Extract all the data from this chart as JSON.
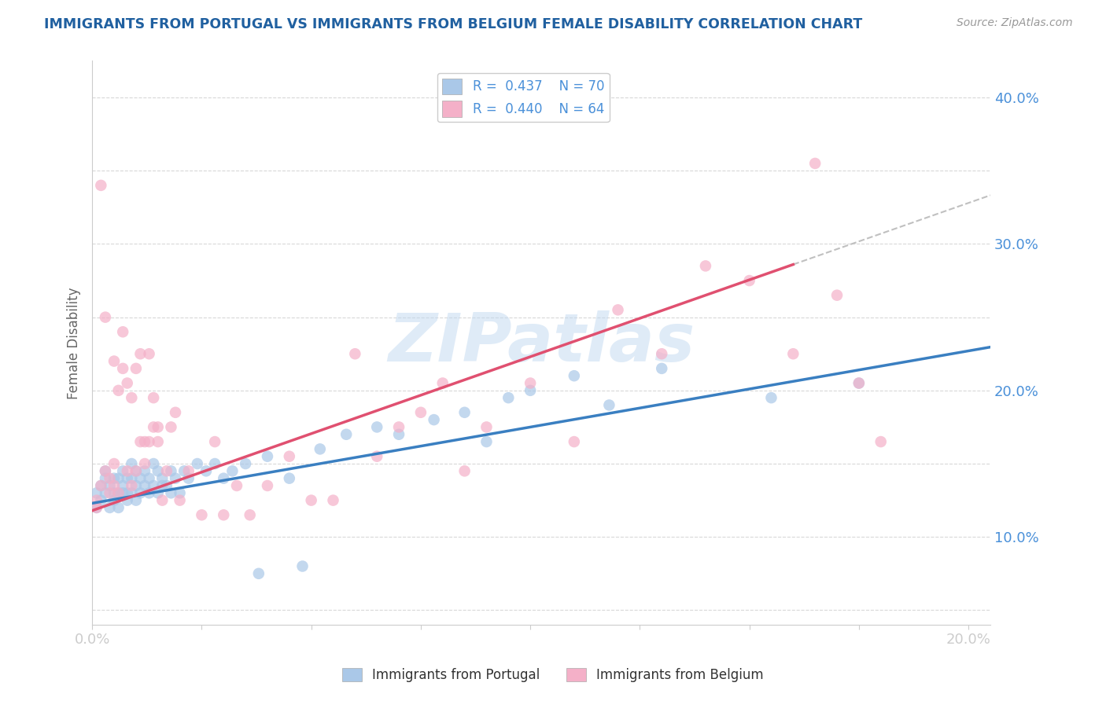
{
  "title": "IMMIGRANTS FROM PORTUGAL VS IMMIGRANTS FROM BELGIUM FEMALE DISABILITY CORRELATION CHART",
  "source": "Source: ZipAtlas.com",
  "ylabel": "Female Disability",
  "xlim": [
    0.0,
    0.205
  ],
  "ylim": [
    0.04,
    0.425
  ],
  "portugal_color": "#aac8e8",
  "belgium_color": "#f4b0c8",
  "portugal_line_color": "#3a7fc1",
  "belgium_line_color": "#e05070",
  "R_portugal": 0.437,
  "N_portugal": 70,
  "R_belgium": 0.44,
  "N_belgium": 64,
  "background_color": "#ffffff",
  "grid_color": "#d8d8d8",
  "title_color": "#2060a0",
  "axis_label_color": "#4a90d9",
  "watermark": "ZIPatlas",
  "watermark_color": "#c0d8f0",
  "portugal_scatter_x": [
    0.001,
    0.001,
    0.002,
    0.002,
    0.003,
    0.003,
    0.003,
    0.004,
    0.004,
    0.005,
    0.005,
    0.005,
    0.006,
    0.006,
    0.006,
    0.007,
    0.007,
    0.007,
    0.008,
    0.008,
    0.008,
    0.009,
    0.009,
    0.009,
    0.01,
    0.01,
    0.01,
    0.011,
    0.011,
    0.012,
    0.012,
    0.013,
    0.013,
    0.014,
    0.014,
    0.015,
    0.015,
    0.016,
    0.016,
    0.017,
    0.018,
    0.018,
    0.019,
    0.02,
    0.021,
    0.022,
    0.024,
    0.026,
    0.028,
    0.03,
    0.032,
    0.035,
    0.038,
    0.04,
    0.045,
    0.048,
    0.052,
    0.058,
    0.065,
    0.07,
    0.078,
    0.085,
    0.09,
    0.095,
    0.1,
    0.11,
    0.118,
    0.13,
    0.155,
    0.175
  ],
  "portugal_scatter_y": [
    0.12,
    0.13,
    0.125,
    0.135,
    0.13,
    0.14,
    0.145,
    0.135,
    0.12,
    0.13,
    0.14,
    0.125,
    0.13,
    0.12,
    0.14,
    0.13,
    0.135,
    0.145,
    0.125,
    0.13,
    0.14,
    0.13,
    0.14,
    0.15,
    0.125,
    0.135,
    0.145,
    0.13,
    0.14,
    0.135,
    0.145,
    0.13,
    0.14,
    0.135,
    0.15,
    0.13,
    0.145,
    0.135,
    0.14,
    0.135,
    0.13,
    0.145,
    0.14,
    0.13,
    0.145,
    0.14,
    0.15,
    0.145,
    0.15,
    0.14,
    0.145,
    0.15,
    0.075,
    0.155,
    0.14,
    0.08,
    0.16,
    0.17,
    0.175,
    0.17,
    0.18,
    0.185,
    0.165,
    0.195,
    0.2,
    0.21,
    0.19,
    0.215,
    0.195,
    0.205
  ],
  "belgium_scatter_x": [
    0.001,
    0.001,
    0.002,
    0.002,
    0.003,
    0.003,
    0.004,
    0.004,
    0.005,
    0.005,
    0.005,
    0.006,
    0.006,
    0.007,
    0.007,
    0.008,
    0.008,
    0.009,
    0.009,
    0.01,
    0.01,
    0.011,
    0.011,
    0.012,
    0.012,
    0.013,
    0.013,
    0.014,
    0.014,
    0.015,
    0.015,
    0.016,
    0.017,
    0.018,
    0.019,
    0.02,
    0.022,
    0.025,
    0.028,
    0.03,
    0.033,
    0.036,
    0.04,
    0.045,
    0.05,
    0.055,
    0.06,
    0.065,
    0.07,
    0.075,
    0.08,
    0.085,
    0.09,
    0.1,
    0.11,
    0.12,
    0.13,
    0.14,
    0.15,
    0.16,
    0.165,
    0.17,
    0.175,
    0.18
  ],
  "belgium_scatter_y": [
    0.12,
    0.125,
    0.135,
    0.34,
    0.25,
    0.145,
    0.13,
    0.14,
    0.22,
    0.15,
    0.135,
    0.2,
    0.13,
    0.24,
    0.215,
    0.205,
    0.145,
    0.195,
    0.135,
    0.215,
    0.145,
    0.165,
    0.225,
    0.15,
    0.165,
    0.225,
    0.165,
    0.195,
    0.175,
    0.165,
    0.175,
    0.125,
    0.145,
    0.175,
    0.185,
    0.125,
    0.145,
    0.115,
    0.165,
    0.115,
    0.135,
    0.115,
    0.135,
    0.155,
    0.125,
    0.125,
    0.225,
    0.155,
    0.175,
    0.185,
    0.205,
    0.145,
    0.175,
    0.205,
    0.165,
    0.255,
    0.225,
    0.285,
    0.275,
    0.225,
    0.355,
    0.265,
    0.205,
    0.165
  ],
  "portugal_reg_slope": 0.52,
  "portugal_reg_intercept": 0.123,
  "belgium_reg_slope": 1.05,
  "belgium_reg_intercept": 0.118
}
